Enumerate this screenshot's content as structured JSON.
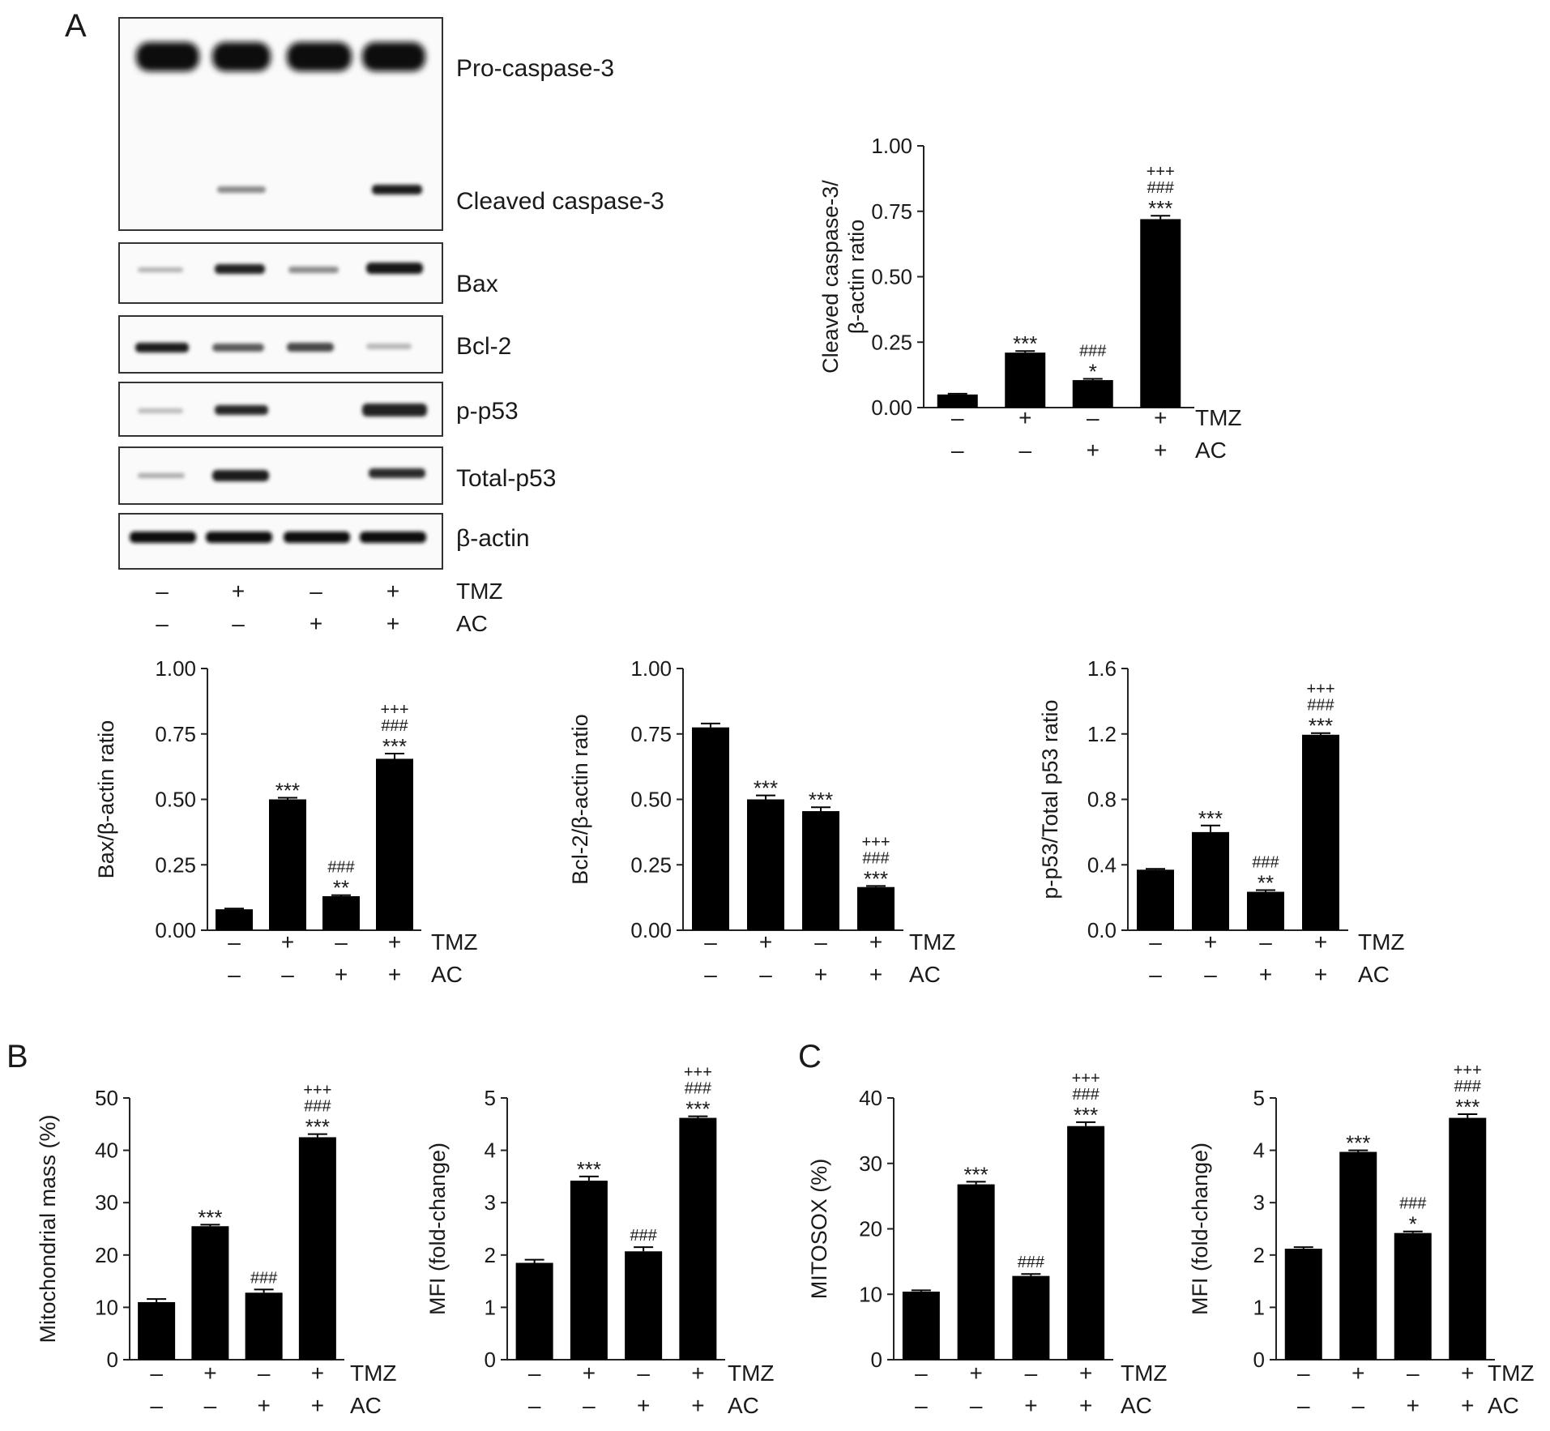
{
  "panels": {
    "A": "A",
    "B": "B",
    "C": "C"
  },
  "conditions": {
    "rows": [
      {
        "name": "TMZ",
        "signs": [
          "–",
          "+",
          "–",
          "+"
        ]
      },
      {
        "name": "AC",
        "signs": [
          "–",
          "–",
          "+",
          "+"
        ]
      }
    ]
  },
  "blot": {
    "labels": [
      "Pro-caspase-3",
      "Cleaved caspase-3",
      "Bax",
      "Bcl-2",
      "p-p53",
      "Total-p53",
      "β-actin"
    ]
  },
  "chart_data": [
    {
      "id": "cleaved",
      "type": "bar",
      "ylabel": [
        "Cleaved caspase-3/",
        "β-actin ratio"
      ],
      "ylim": [
        0,
        1.0
      ],
      "yticks": [
        "0.00",
        "0.25",
        "0.50",
        "0.75",
        "1.00"
      ],
      "categories": [
        "–/–",
        "+/–",
        "–/+",
        "+/+"
      ],
      "values": [
        0.05,
        0.21,
        0.105,
        0.72
      ],
      "errors": [
        0.003,
        0.006,
        0.005,
        0.013
      ],
      "sig": [
        [],
        [
          "***"
        ],
        [
          "*",
          "###"
        ],
        [
          "***",
          "###",
          "+++"
        ]
      ]
    },
    {
      "id": "bax",
      "type": "bar",
      "ylabel": [
        "Bax/β-actin ratio"
      ],
      "ylim": [
        0,
        1.0
      ],
      "yticks": [
        "0.00",
        "0.25",
        "0.50",
        "0.75",
        "1.00"
      ],
      "categories": [
        "–/–",
        "+/–",
        "–/+",
        "+/+"
      ],
      "values": [
        0.08,
        0.5,
        0.13,
        0.655
      ],
      "errors": [
        0.003,
        0.006,
        0.004,
        0.02
      ],
      "sig": [
        [],
        [
          "***"
        ],
        [
          "**",
          "###"
        ],
        [
          "***",
          "###",
          "+++"
        ]
      ]
    },
    {
      "id": "bcl2",
      "type": "bar",
      "ylabel": [
        "Bcl-2/β-actin ratio"
      ],
      "ylim": [
        0,
        1.0
      ],
      "yticks": [
        "0.00",
        "0.25",
        "0.50",
        "0.75",
        "1.00"
      ],
      "categories": [
        "–/–",
        "+/–",
        "–/+",
        "+/+"
      ],
      "values": [
        0.775,
        0.5,
        0.455,
        0.165
      ],
      "errors": [
        0.015,
        0.015,
        0.015,
        0.004
      ],
      "sig": [
        [],
        [
          "***"
        ],
        [
          "***"
        ],
        [
          "***",
          "###",
          "+++"
        ]
      ]
    },
    {
      "id": "p53",
      "type": "bar",
      "ylabel": [
        "p-p53/Total p53 ratio"
      ],
      "ylim": [
        0,
        1.6
      ],
      "yticks": [
        "0.0",
        "0.4",
        "0.8",
        "1.2",
        "1.6"
      ],
      "categories": [
        "–/–",
        "+/–",
        "–/+",
        "+/+"
      ],
      "values": [
        0.37,
        0.6,
        0.235,
        1.195
      ],
      "errors": [
        0.005,
        0.04,
        0.01,
        0.01
      ],
      "sig": [
        [],
        [
          "***"
        ],
        [
          "**",
          "###"
        ],
        [
          "***",
          "###",
          "+++"
        ]
      ]
    },
    {
      "id": "mitomass",
      "type": "bar",
      "ylabel": [
        "Mitochondrial mass (%)"
      ],
      "ylim": [
        0,
        50
      ],
      "yticks": [
        "0",
        "10",
        "20",
        "30",
        "40",
        "50"
      ],
      "categories": [
        "–/–",
        "+/–",
        "–/+",
        "+/+"
      ],
      "values": [
        11.0,
        25.5,
        12.8,
        42.5
      ],
      "errors": [
        0.6,
        0.3,
        0.6,
        0.6
      ],
      "sig": [
        [],
        [
          "***"
        ],
        [
          "###"
        ],
        [
          "***",
          "###",
          "+++"
        ]
      ]
    },
    {
      "id": "mfiB",
      "type": "bar",
      "ylabel": [
        "MFI (fold-change)"
      ],
      "ylim": [
        0,
        5
      ],
      "yticks": [
        "0",
        "1",
        "2",
        "3",
        "4",
        "5"
      ],
      "categories": [
        "–/–",
        "+/–",
        "–/+",
        "+/+"
      ],
      "values": [
        1.85,
        3.42,
        2.07,
        4.62
      ],
      "errors": [
        0.06,
        0.08,
        0.08,
        0.03
      ],
      "sig": [
        [],
        [
          "***"
        ],
        [
          "###"
        ],
        [
          "***",
          "###",
          "+++"
        ]
      ]
    },
    {
      "id": "mitosox",
      "type": "bar",
      "ylabel": [
        "MITOSOX (%)"
      ],
      "ylim": [
        0,
        40
      ],
      "yticks": [
        "0",
        "10",
        "20",
        "30",
        "40"
      ],
      "categories": [
        "–/–",
        "+/–",
        "–/+",
        "+/+"
      ],
      "values": [
        10.4,
        26.8,
        12.8,
        35.7
      ],
      "errors": [
        0.2,
        0.4,
        0.3,
        0.6
      ],
      "sig": [
        [],
        [
          "***"
        ],
        [
          "###"
        ],
        [
          "***",
          "###",
          "+++"
        ]
      ]
    },
    {
      "id": "mfiC",
      "type": "bar",
      "ylabel": [
        "MFI (fold-change)"
      ],
      "ylim": [
        0,
        5
      ],
      "yticks": [
        "0",
        "1",
        "2",
        "3",
        "4",
        "5"
      ],
      "categories": [
        "–/–",
        "+/–",
        "–/+",
        "+/+"
      ],
      "values": [
        2.12,
        3.97,
        2.42,
        4.62
      ],
      "errors": [
        0.03,
        0.03,
        0.03,
        0.07
      ],
      "sig": [
        [],
        [
          "***"
        ],
        [
          "*",
          "###"
        ],
        [
          "***",
          "###",
          "+++"
        ]
      ]
    }
  ]
}
